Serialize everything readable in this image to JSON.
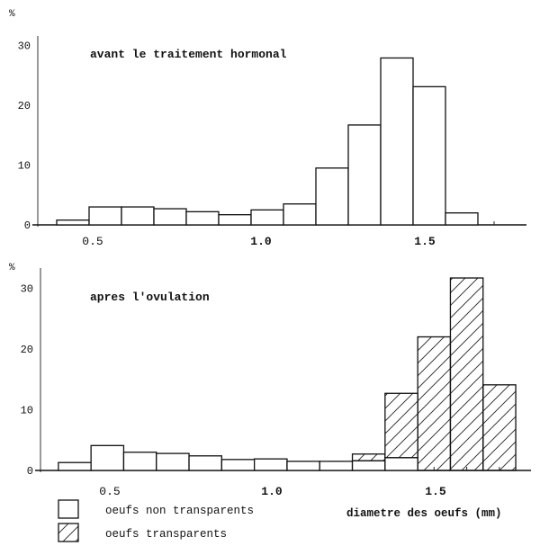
{
  "chart_data": [
    {
      "type": "bar",
      "title": "avant le traitement hormonal",
      "ylabel": "%",
      "xlabel": "",
      "ylim": [
        0,
        30
      ],
      "xlim": [
        0.35,
        1.75
      ],
      "x_ticks": [
        "0.5",
        "1.0",
        "1.5"
      ],
      "y_ticks": [
        "0",
        "10",
        "20",
        "30"
      ],
      "bin_width": 0.1,
      "categories": [
        0.4,
        0.5,
        0.6,
        0.7,
        0.8,
        0.9,
        1.0,
        1.1,
        1.2,
        1.3,
        1.4,
        1.5,
        1.6,
        1.7
      ],
      "series": [
        {
          "values": [
            0.8,
            3.0,
            3.0,
            2.7,
            2.2,
            1.7,
            2.5,
            3.5,
            9.5,
            16.7,
            27.9,
            23.1,
            2.0,
            0
          ],
          "fill": "plain"
        }
      ],
      "grid": false
    },
    {
      "type": "bar",
      "stacked": true,
      "title": "apres l'ovulation",
      "ylabel": "%",
      "xlabel": "diametre des oeufs (mm)",
      "ylim": [
        0,
        30
      ],
      "xlim": [
        0.35,
        1.75
      ],
      "x_ticks": [
        "0.5",
        "1.0",
        "1.5"
      ],
      "y_ticks": [
        "0",
        "10",
        "20",
        "30"
      ],
      "bin_width": 0.1,
      "categories": [
        0.4,
        0.5,
        0.6,
        0.7,
        0.8,
        0.9,
        1.0,
        1.1,
        1.2,
        1.3,
        1.4,
        1.5,
        1.6,
        1.7
      ],
      "series": [
        {
          "name": "oeufs non transparents",
          "fill": "plain",
          "values": [
            1.3,
            4.1,
            3.0,
            2.8,
            2.4,
            1.8,
            1.9,
            1.5,
            1.5,
            1.6,
            2.1,
            0,
            0,
            0
          ]
        },
        {
          "name": "oeufs transparents",
          "fill": "hatched",
          "values": [
            0,
            0,
            0,
            0,
            0,
            0,
            0,
            0,
            0,
            1.1,
            10.6,
            22.0,
            31.7,
            14.1
          ]
        }
      ],
      "legend": "bottom-left",
      "grid": false
    }
  ],
  "colors": {
    "ink": "#111111",
    "paper": "#ffffff"
  }
}
